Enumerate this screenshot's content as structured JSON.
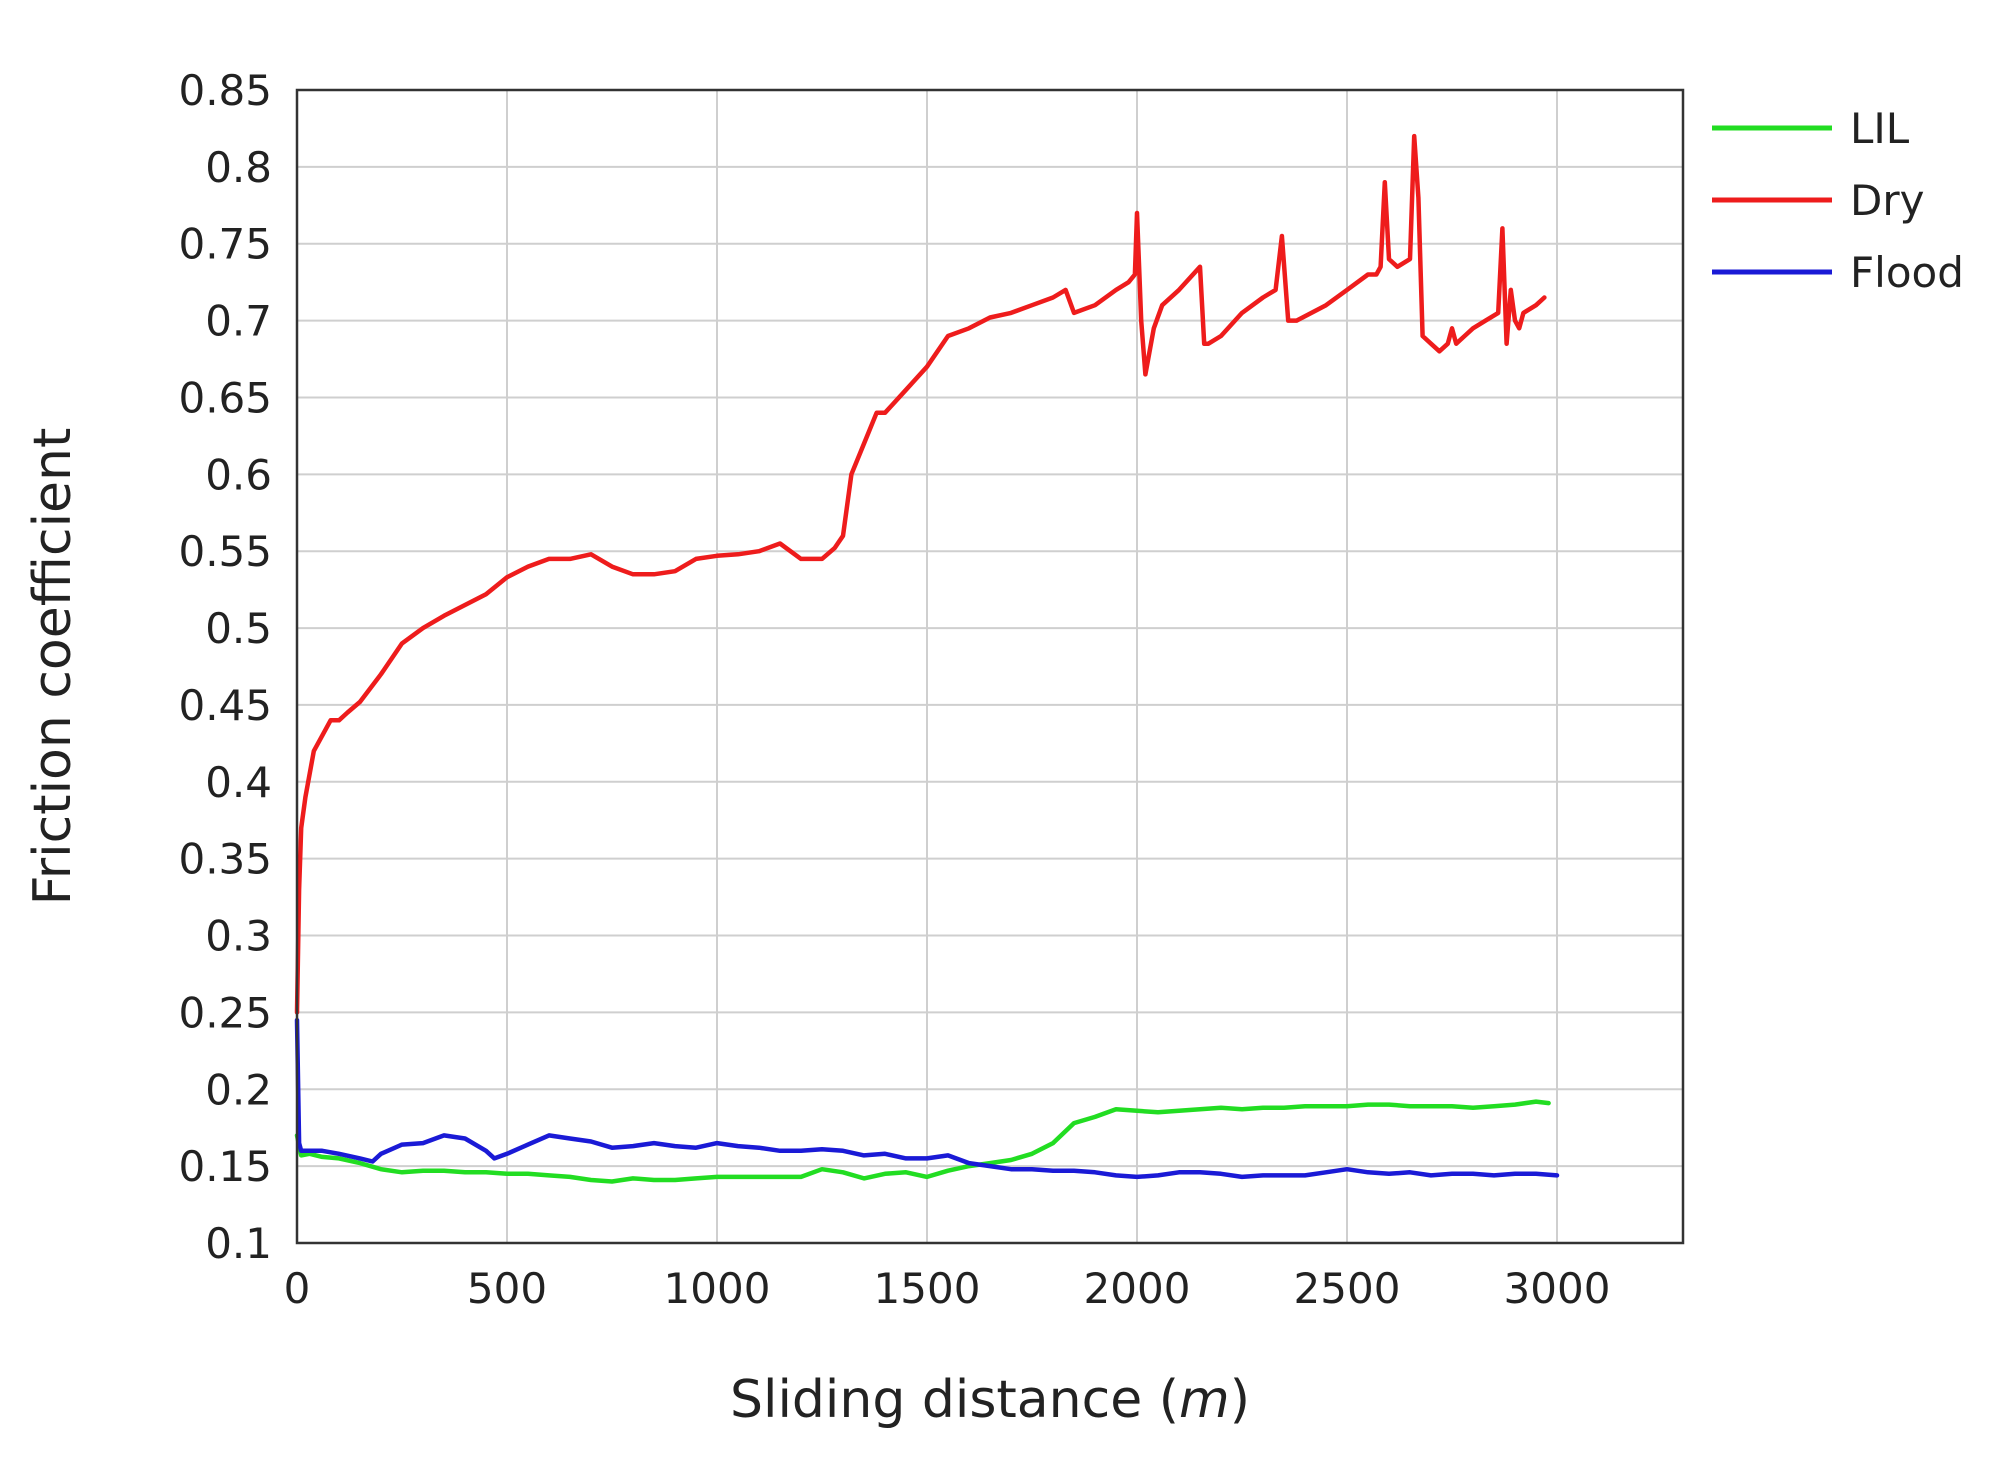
{
  "chart_data": {
    "type": "line",
    "title": "",
    "xlabel": "Sliding distance (m)",
    "xlabel_parts": {
      "text": "Sliding distance (",
      "unit": "m",
      "close": ")"
    },
    "ylabel": "Friction coefficient",
    "xlim": [
      0,
      3300
    ],
    "ylim": [
      0.1,
      0.85
    ],
    "x_ticks": [
      0,
      500,
      1000,
      1500,
      2000,
      2500,
      3000
    ],
    "x_tick_labels": [
      "0",
      "500",
      "1000",
      "1500",
      "2000",
      "2500",
      "3000"
    ],
    "y_ticks": [
      0.1,
      0.15,
      0.2,
      0.25,
      0.3,
      0.35,
      0.4,
      0.45,
      0.5,
      0.55,
      0.6,
      0.65,
      0.7,
      0.75,
      0.8,
      0.85
    ],
    "y_tick_labels": [
      "0.1",
      "0.15",
      "0.2",
      "0.25",
      "0.3",
      "0.35",
      "0.4",
      "0.45",
      "0.5",
      "0.55",
      "0.6",
      "0.65",
      "0.7",
      "0.75",
      "0.8",
      "0.85"
    ],
    "grid": true,
    "legend_position": "outside-top-right",
    "series": [
      {
        "name": "LIL",
        "color": "#22dd22",
        "x": [
          0,
          10,
          30,
          60,
          100,
          150,
          200,
          250,
          300,
          350,
          400,
          450,
          500,
          550,
          600,
          650,
          700,
          750,
          800,
          850,
          900,
          950,
          1000,
          1050,
          1100,
          1150,
          1200,
          1250,
          1300,
          1350,
          1400,
          1450,
          1500,
          1550,
          1600,
          1650,
          1700,
          1750,
          1800,
          1850,
          1900,
          1950,
          2000,
          2050,
          2100,
          2150,
          2200,
          2250,
          2300,
          2350,
          2400,
          2450,
          2500,
          2550,
          2600,
          2650,
          2700,
          2750,
          2800,
          2850,
          2900,
          2950,
          2980
        ],
        "y": [
          0.17,
          0.157,
          0.158,
          0.156,
          0.155,
          0.152,
          0.148,
          0.146,
          0.147,
          0.147,
          0.146,
          0.146,
          0.145,
          0.145,
          0.144,
          0.143,
          0.141,
          0.14,
          0.142,
          0.141,
          0.141,
          0.142,
          0.143,
          0.143,
          0.143,
          0.143,
          0.143,
          0.148,
          0.146,
          0.142,
          0.145,
          0.146,
          0.143,
          0.147,
          0.15,
          0.152,
          0.154,
          0.158,
          0.165,
          0.178,
          0.182,
          0.187,
          0.186,
          0.185,
          0.186,
          0.187,
          0.188,
          0.187,
          0.188,
          0.188,
          0.189,
          0.189,
          0.189,
          0.19,
          0.19,
          0.189,
          0.189,
          0.189,
          0.188,
          0.189,
          0.19,
          0.192,
          0.191
        ]
      },
      {
        "name": "Dry",
        "color": "#ee1c1c",
        "x": [
          0,
          5,
          10,
          20,
          40,
          60,
          80,
          100,
          120,
          150,
          200,
          250,
          300,
          350,
          400,
          450,
          500,
          550,
          600,
          650,
          700,
          750,
          800,
          850,
          900,
          950,
          1000,
          1050,
          1100,
          1150,
          1200,
          1250,
          1280,
          1300,
          1320,
          1350,
          1380,
          1400,
          1450,
          1500,
          1550,
          1600,
          1650,
          1700,
          1750,
          1800,
          1830,
          1850,
          1900,
          1950,
          1980,
          1995,
          2000,
          2010,
          2020,
          2040,
          2060,
          2100,
          2150,
          2160,
          2170,
          2200,
          2250,
          2300,
          2330,
          2345,
          2360,
          2380,
          2450,
          2500,
          2550,
          2570,
          2580,
          2590,
          2600,
          2620,
          2650,
          2660,
          2670,
          2680,
          2700,
          2720,
          2740,
          2750,
          2760,
          2780,
          2800,
          2830,
          2860,
          2870,
          2880,
          2890,
          2900,
          2910,
          2920,
          2950,
          2970
        ],
        "y": [
          0.25,
          0.33,
          0.37,
          0.39,
          0.42,
          0.43,
          0.44,
          0.44,
          0.445,
          0.452,
          0.47,
          0.49,
          0.5,
          0.508,
          0.515,
          0.522,
          0.533,
          0.54,
          0.545,
          0.545,
          0.548,
          0.54,
          0.535,
          0.535,
          0.537,
          0.545,
          0.547,
          0.548,
          0.55,
          0.555,
          0.545,
          0.545,
          0.552,
          0.56,
          0.6,
          0.62,
          0.64,
          0.64,
          0.655,
          0.67,
          0.69,
          0.695,
          0.702,
          0.705,
          0.71,
          0.715,
          0.72,
          0.705,
          0.71,
          0.72,
          0.725,
          0.73,
          0.77,
          0.7,
          0.665,
          0.695,
          0.71,
          0.72,
          0.735,
          0.685,
          0.685,
          0.69,
          0.705,
          0.715,
          0.72,
          0.755,
          0.7,
          0.7,
          0.71,
          0.72,
          0.73,
          0.73,
          0.735,
          0.79,
          0.74,
          0.735,
          0.74,
          0.82,
          0.78,
          0.69,
          0.685,
          0.68,
          0.685,
          0.695,
          0.685,
          0.69,
          0.695,
          0.7,
          0.705,
          0.76,
          0.685,
          0.72,
          0.7,
          0.695,
          0.705,
          0.71,
          0.715
        ]
      },
      {
        "name": "Flood",
        "color": "#1a1ad6",
        "x": [
          0,
          5,
          10,
          30,
          60,
          100,
          150,
          180,
          200,
          250,
          300,
          350,
          400,
          450,
          470,
          500,
          550,
          600,
          650,
          700,
          750,
          800,
          850,
          900,
          950,
          1000,
          1050,
          1100,
          1150,
          1200,
          1250,
          1300,
          1350,
          1400,
          1450,
          1500,
          1550,
          1600,
          1650,
          1700,
          1750,
          1800,
          1850,
          1900,
          1950,
          2000,
          2050,
          2100,
          2150,
          2200,
          2250,
          2300,
          2350,
          2400,
          2450,
          2500,
          2550,
          2600,
          2650,
          2700,
          2750,
          2800,
          2850,
          2900,
          2950,
          3000
        ],
        "y": [
          0.245,
          0.165,
          0.16,
          0.16,
          0.16,
          0.158,
          0.155,
          0.153,
          0.158,
          0.164,
          0.165,
          0.17,
          0.168,
          0.16,
          0.155,
          0.158,
          0.164,
          0.17,
          0.168,
          0.166,
          0.162,
          0.163,
          0.165,
          0.163,
          0.162,
          0.165,
          0.163,
          0.162,
          0.16,
          0.16,
          0.161,
          0.16,
          0.157,
          0.158,
          0.155,
          0.155,
          0.157,
          0.152,
          0.15,
          0.148,
          0.148,
          0.147,
          0.147,
          0.146,
          0.144,
          0.143,
          0.144,
          0.146,
          0.146,
          0.145,
          0.143,
          0.144,
          0.144,
          0.144,
          0.146,
          0.148,
          0.146,
          0.145,
          0.146,
          0.144,
          0.145,
          0.145,
          0.144,
          0.145,
          0.145,
          0.144
        ]
      }
    ]
  }
}
